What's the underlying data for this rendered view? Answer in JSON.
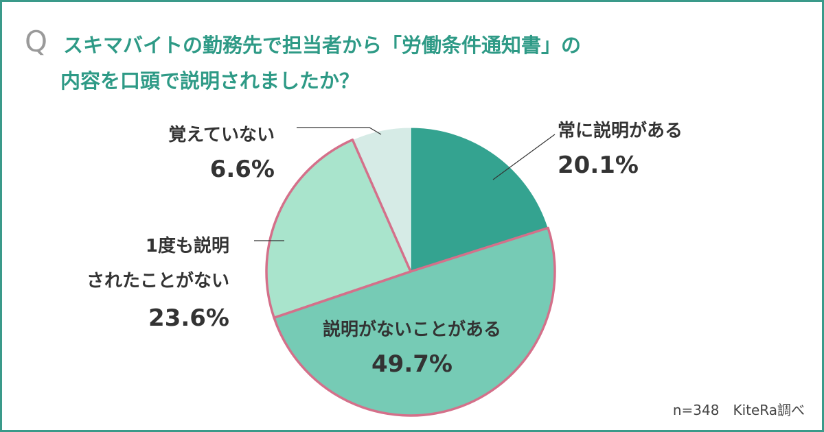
{
  "question": {
    "mark": "Q",
    "line1": "スキマバイトの勤務先で担当者から「労働条件通知書」の",
    "line2": "内容を口頭で説明されましたか？"
  },
  "footnote": "n=348　KiteRa調べ",
  "colors": {
    "frame": "#3a9a8a",
    "title": "#2e9a86",
    "highlight_border": "#d4708a"
  },
  "chart_data": {
    "type": "pie",
    "start_angle": "12 o'clock",
    "direction": "clockwise",
    "slices": [
      {
        "label": "常に説明がある",
        "value": 20.1,
        "display": "20.1%",
        "color": "#34a390",
        "highlight": false
      },
      {
        "label": "説明がないことがある",
        "value": 49.7,
        "display": "49.7%",
        "color": "#76cbb5",
        "highlight": true
      },
      {
        "label": "1度も説明されたことがない",
        "label_line1": "1度も説明",
        "label_line2": "されたことがない",
        "value": 23.6,
        "display": "23.6%",
        "color": "#a9e4cc",
        "highlight": true
      },
      {
        "label": "覚えていない",
        "value": 6.6,
        "display": "6.6%",
        "color": "#d6ebe6",
        "highlight": false
      }
    ]
  }
}
